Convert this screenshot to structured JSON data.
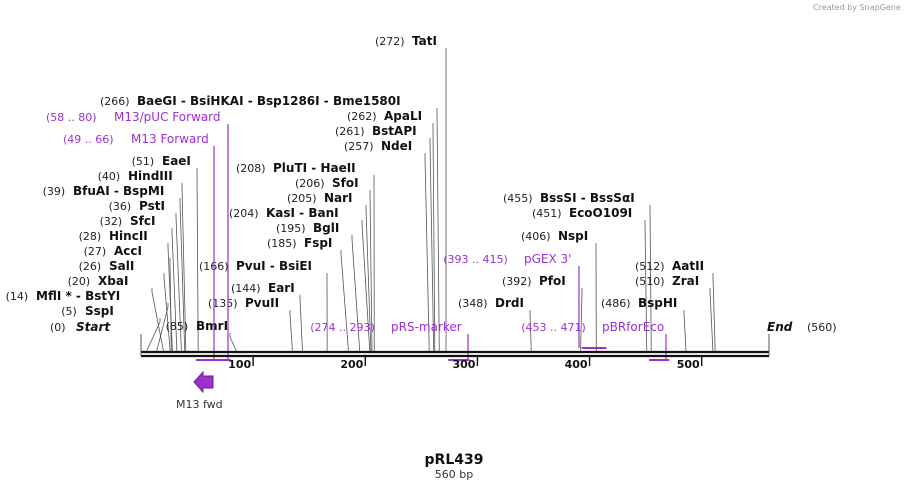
{
  "credit": "Created by SnapGene",
  "plasmid": {
    "name": "pRL439",
    "size_label": "560 bp",
    "length": 560
  },
  "scale_ticks": [
    {
      "value": 100,
      "label": "100"
    },
    {
      "value": 200,
      "label": "200"
    },
    {
      "value": 300,
      "label": "300"
    },
    {
      "value": 400,
      "label": "400"
    },
    {
      "value": 500,
      "label": "500"
    }
  ],
  "ends": {
    "start": {
      "pos_label": "(0)",
      "name": "Start"
    },
    "end": {
      "pos_label": "(560)",
      "name": "End"
    }
  },
  "sites": [
    {
      "pos": 5,
      "pos_label": "(5)",
      "name": "SspI"
    },
    {
      "pos": 14,
      "pos_label": "(14)",
      "name": "MflI * - BstYI"
    },
    {
      "pos": 20,
      "pos_label": "(20)",
      "name": "XbaI"
    },
    {
      "pos": 26,
      "pos_label": "(26)",
      "name": "SalI"
    },
    {
      "pos": 27,
      "pos_label": "(27)",
      "name": "AccI"
    },
    {
      "pos": 28,
      "pos_label": "(28)",
      "name": "HincII"
    },
    {
      "pos": 32,
      "pos_label": "(32)",
      "name": "SfcI"
    },
    {
      "pos": 36,
      "pos_label": "(36)",
      "name": "PstI"
    },
    {
      "pos": 39,
      "pos_label": "(39)",
      "name": "BfuAI - BspMI"
    },
    {
      "pos": 40,
      "pos_label": "(40)",
      "name": "HindIII"
    },
    {
      "pos": 51,
      "pos_label": "(51)",
      "name": "EaeI"
    },
    {
      "pos": 85,
      "pos_label": "(85)",
      "name": "BmrI"
    },
    {
      "pos": 135,
      "pos_label": "(135)",
      "name": "PvuII"
    },
    {
      "pos": 144,
      "pos_label": "(144)",
      "name": "EarI"
    },
    {
      "pos": 166,
      "pos_label": "(166)",
      "name": "PvuI - BsiEI"
    },
    {
      "pos": 185,
      "pos_label": "(185)",
      "name": "FspI"
    },
    {
      "pos": 195,
      "pos_label": "(195)",
      "name": "BglI"
    },
    {
      "pos": 204,
      "pos_label": "(204)",
      "name": "KasI - BanI"
    },
    {
      "pos": 205,
      "pos_label": "(205)",
      "name": "NarI"
    },
    {
      "pos": 206,
      "pos_label": "(206)",
      "name": "SfoI"
    },
    {
      "pos": 208,
      "pos_label": "(208)",
      "name": "PluTI - HaeII"
    },
    {
      "pos": 257,
      "pos_label": "(257)",
      "name": "NdeI"
    },
    {
      "pos": 261,
      "pos_label": "(261)",
      "name": "BstAPI"
    },
    {
      "pos": 262,
      "pos_label": "(262)",
      "name": "ApaLI"
    },
    {
      "pos": 266,
      "pos_label": "(266)",
      "name": "BaeGI - BsiHKAI - Bsp1286I - Bme1580I"
    },
    {
      "pos": 272,
      "pos_label": "(272)",
      "name": "TatI"
    },
    {
      "pos": 348,
      "pos_label": "(348)",
      "name": "DrdI"
    },
    {
      "pos": 392,
      "pos_label": "(392)",
      "name": "PfoI"
    },
    {
      "pos": 406,
      "pos_label": "(406)",
      "name": "NspI"
    },
    {
      "pos": 451,
      "pos_label": "(451)",
      "name": "EcoO109I"
    },
    {
      "pos": 455,
      "pos_label": "(455)",
      "name": "BssSI - BssSαI"
    },
    {
      "pos": 486,
      "pos_label": "(486)",
      "name": "BspHI"
    },
    {
      "pos": 510,
      "pos_label": "(510)",
      "name": "ZraI"
    },
    {
      "pos": 512,
      "pos_label": "(512)",
      "name": "AatII"
    }
  ],
  "features": [
    {
      "name": "M13/pUC Forward",
      "range_label": "(58 .. 80)",
      "start": 58,
      "end": 80
    },
    {
      "name": "M13 Forward",
      "range_label": "(49 .. 66)",
      "start": 49,
      "end": 66
    },
    {
      "name": "pRS-marker",
      "range_label": "(274 .. 293)",
      "start": 274,
      "end": 293
    },
    {
      "name": "pGEX 3'",
      "range_label": "(393 .. 415)",
      "start": 393,
      "end": 415
    },
    {
      "name": "pBRforEco",
      "range_label": "(453 .. 471)",
      "start": 453,
      "end": 471
    }
  ],
  "primer_arrow": {
    "label": "M13 fwd",
    "direction": "reverse"
  },
  "colors": {
    "feature": "#9b30d0",
    "backbone": "#111111",
    "line": "#555555"
  }
}
